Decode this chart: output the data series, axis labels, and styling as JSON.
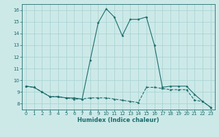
{
  "xlabel": "Humidex (Indice chaleur)",
  "background_color": "#cce9e8",
  "grid_color": "#aad4d3",
  "line_color": "#1a6b6b",
  "xlim": [
    -0.5,
    23.5
  ],
  "ylim": [
    7.5,
    16.5
  ],
  "yticks": [
    8,
    9,
    10,
    11,
    12,
    13,
    14,
    15,
    16
  ],
  "xticks": [
    0,
    1,
    2,
    3,
    4,
    5,
    6,
    7,
    8,
    9,
    10,
    11,
    12,
    13,
    14,
    15,
    16,
    17,
    18,
    19,
    20,
    21,
    22,
    23
  ],
  "series1_x": [
    0,
    1,
    2,
    3,
    4,
    5,
    6,
    7,
    8,
    9,
    10,
    11,
    12,
    13,
    14,
    15,
    16,
    17,
    18,
    19,
    20,
    21,
    22,
    23
  ],
  "series1_y": [
    9.5,
    9.4,
    9.0,
    8.6,
    8.6,
    8.5,
    8.4,
    8.4,
    8.5,
    8.5,
    8.5,
    8.4,
    8.3,
    8.2,
    8.1,
    9.4,
    9.4,
    9.3,
    9.2,
    9.2,
    9.2,
    8.3,
    8.2,
    7.7
  ],
  "series2_x": [
    0,
    1,
    2,
    3,
    4,
    5,
    6,
    7,
    8,
    9,
    10,
    11,
    12,
    13,
    14,
    15,
    16,
    17,
    18,
    19,
    20,
    21,
    22,
    23
  ],
  "series2_y": [
    9.5,
    9.4,
    9.0,
    8.6,
    8.6,
    8.5,
    8.5,
    8.4,
    11.7,
    14.9,
    16.1,
    15.4,
    13.8,
    15.2,
    15.2,
    15.4,
    13.0,
    9.4,
    9.5,
    9.5,
    9.5,
    8.8,
    8.2,
    7.7
  ]
}
